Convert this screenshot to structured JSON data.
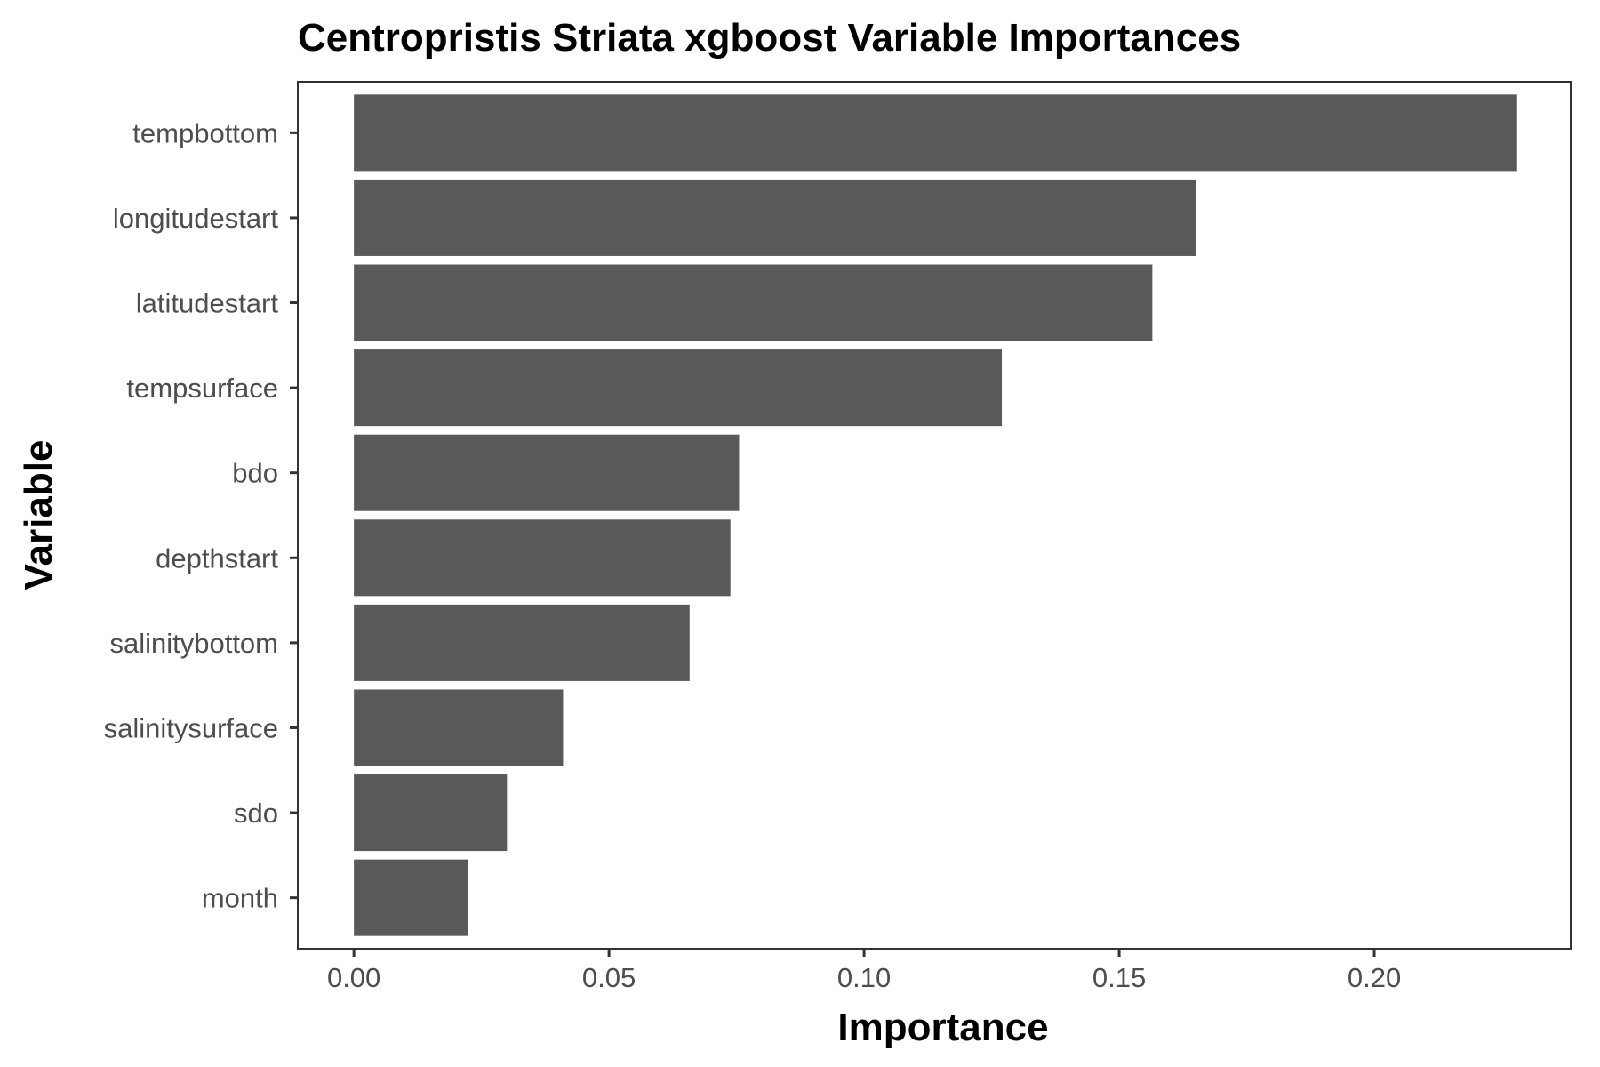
{
  "chart_data": {
    "type": "bar",
    "orientation": "horizontal",
    "title": "Centropristis Striata xgboost Variable Importances",
    "xlabel": "Importance",
    "ylabel": "Variable",
    "categories": [
      "tempbottom",
      "longitudestart",
      "latitudestart",
      "tempsurface",
      "bdo",
      "depthstart",
      "salinitybottom",
      "salinitysurface",
      "sdo",
      "month"
    ],
    "values": [
      0.228,
      0.165,
      0.1565,
      0.127,
      0.0755,
      0.0738,
      0.0658,
      0.041,
      0.03,
      0.0223
    ],
    "xlim": [
      -0.011,
      0.2385
    ],
    "xticks": [
      0,
      0.05,
      0.1,
      0.15,
      0.2
    ],
    "xtick_labels": [
      "0.00",
      "0.05",
      "0.10",
      "0.15",
      "0.20"
    ],
    "grid": false,
    "legend": "none",
    "colors": {
      "bar": "#595959",
      "panel_border": "#333333",
      "tick": "#333333",
      "tick_label": "#4d4d4d",
      "background": "#ffffff"
    }
  }
}
